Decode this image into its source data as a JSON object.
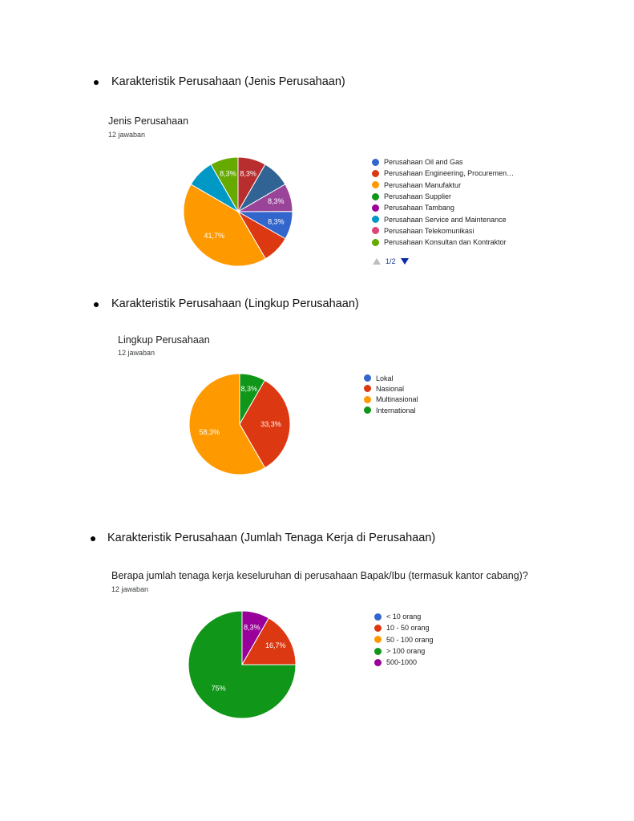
{
  "sections": [
    {
      "heading": "Karakteristik Perusahaan (Jenis Perusahaan)"
    },
    {
      "heading": "Karakteristik Perusahaan (Lingkup Perusahaan)"
    },
    {
      "heading": "Karakteristik Perusahaan (Jumlah Tenaga Kerja di Perusahaan)"
    }
  ],
  "chart_data": [
    {
      "type": "pie",
      "title": "Jenis Perusahaan",
      "subtitle": "12 jawaban",
      "legend_position": "right",
      "pager": {
        "label": "1/2"
      },
      "categories": [
        "Perusahaan Oil and Gas",
        "Perusahaan Engineering, Procuremen…",
        "Perusahaan Manufaktur",
        "Perusahaan Supplier",
        "Perusahaan Tambang",
        "Perusahaan Service and Maintenance",
        "Perusahaan Telekomunikasi",
        "Perusahaan Konsultan dan Kontraktor"
      ],
      "legend_colors": [
        "#3366cc",
        "#dc3912",
        "#ff9900",
        "#109618",
        "#990099",
        "#0099c6",
        "#dd4477",
        "#66aa00"
      ],
      "slices": [
        {
          "value": 8.3,
          "label": "8,3%",
          "color": "#b82e2e"
        },
        {
          "value": 8.3,
          "label": "",
          "color": "#316395"
        },
        {
          "value": 8.3,
          "label": "8,3%",
          "color": "#994499"
        },
        {
          "value": 8.3,
          "label": "8,3%",
          "color": "#3366cc"
        },
        {
          "value": 8.3,
          "label": "",
          "color": "#dc3912"
        },
        {
          "value": 41.7,
          "label": "41,7%",
          "color": "#ff9900"
        },
        {
          "value": 8.3,
          "label": "",
          "color": "#0099c6"
        },
        {
          "value": 8.3,
          "label": "8,3%",
          "color": "#66aa00"
        }
      ]
    },
    {
      "type": "pie",
      "title": "Lingkup Perusahaan",
      "subtitle": "12 jawaban",
      "legend_position": "right",
      "categories": [
        "Lokal",
        "Nasional",
        "Multinasional",
        "International"
      ],
      "legend_colors": [
        "#3366cc",
        "#dc3912",
        "#ff9900",
        "#109618"
      ],
      "slices": [
        {
          "value": 8.3,
          "label": "8,3%",
          "color": "#109618"
        },
        {
          "value": 33.3,
          "label": "33,3%",
          "color": "#dc3912"
        },
        {
          "value": 58.3,
          "label": "58,3%",
          "color": "#ff9900"
        }
      ]
    },
    {
      "type": "pie",
      "title": "Berapa jumlah tenaga kerja keseluruhan di perusahaan Bapak/Ibu (termasuk kantor cabang)?",
      "subtitle": "12 jawaban",
      "legend_position": "right",
      "categories": [
        "< 10 orang",
        "10 - 50 orang",
        "50 - 100 orang",
        "> 100 orang",
        "500-1000"
      ],
      "legend_colors": [
        "#3366cc",
        "#dc3912",
        "#ff9900",
        "#109618",
        "#990099"
      ],
      "slices": [
        {
          "value": 8.3,
          "label": "8,3%",
          "color": "#990099"
        },
        {
          "value": 16.7,
          "label": "16,7%",
          "color": "#dc3912"
        },
        {
          "value": 75,
          "label": "75%",
          "color": "#109618"
        }
      ]
    }
  ]
}
